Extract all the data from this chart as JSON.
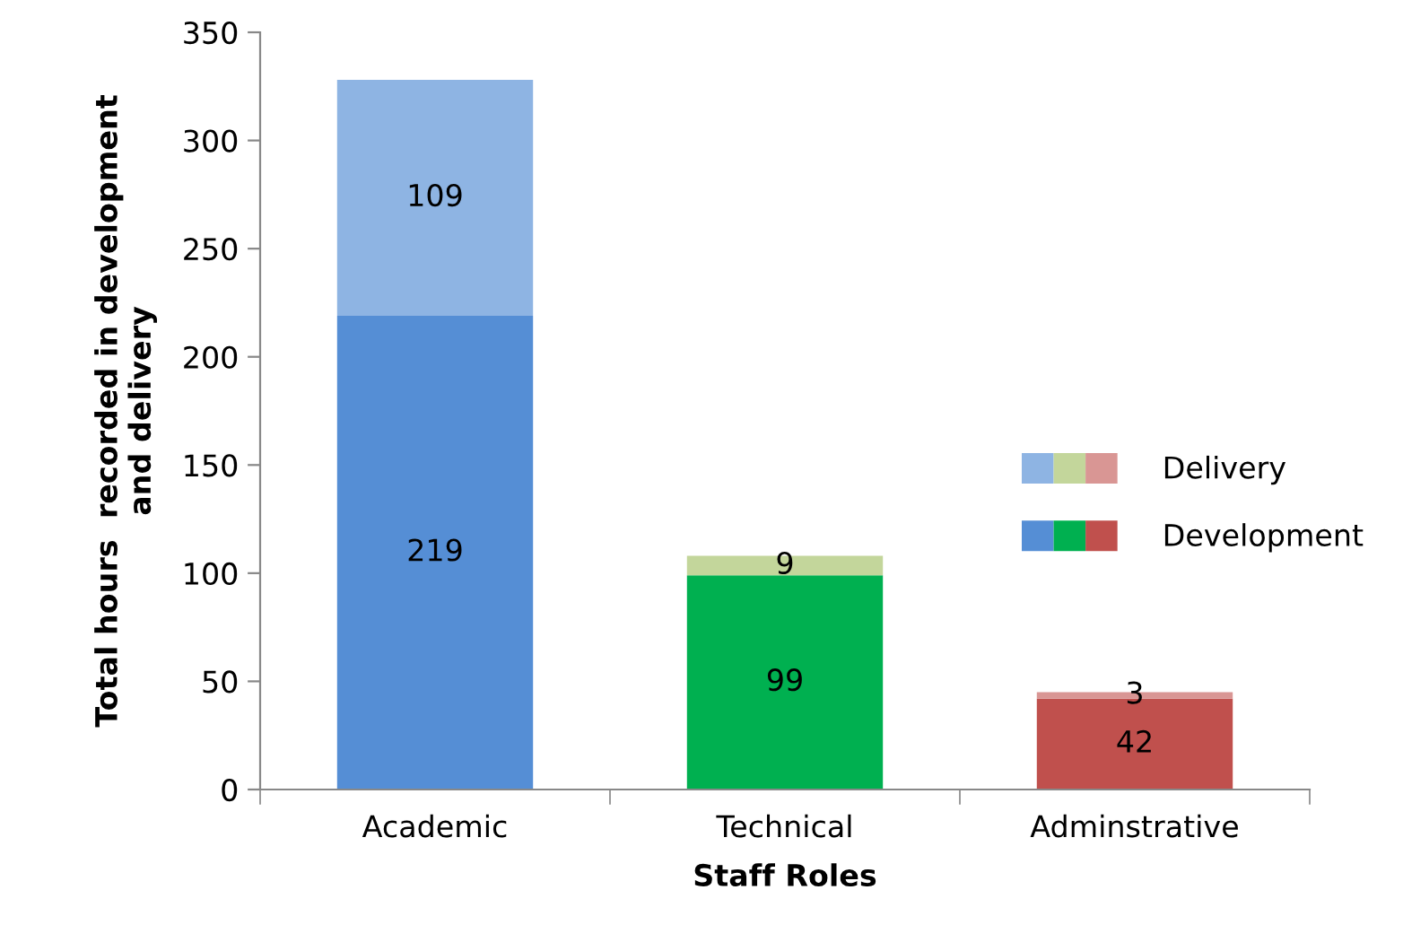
{
  "chart_data": {
    "type": "bar",
    "stacked": true,
    "xlabel": "Staff Roles",
    "ylabel": "Total hours  recorded in development\nand delivery",
    "categories": [
      "Academic",
      "Technical",
      "Adminstrative"
    ],
    "series": [
      {
        "name": "Development",
        "colors": [
          "#558ed5",
          "#00b050",
          "#c0504d"
        ],
        "values": [
          219,
          99,
          42
        ]
      },
      {
        "name": "Delivery",
        "colors": [
          "#8eb4e3",
          "#c3d69b",
          "#d99694"
        ],
        "values": [
          109,
          9,
          3
        ]
      }
    ],
    "ylim": [
      0,
      350
    ],
    "yticks": [
      0,
      50,
      100,
      150,
      200,
      250,
      300,
      350
    ],
    "grid": false,
    "legend": "right",
    "data_labels": true
  }
}
